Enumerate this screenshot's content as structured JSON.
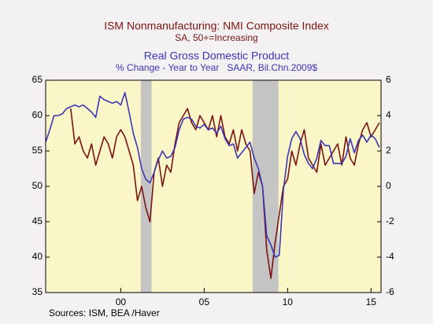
{
  "chart_data": {
    "type": "line",
    "source": "Sources:  ISM, BEA /Haver",
    "xlim": [
      1995.5,
      2015.6
    ],
    "xticks": [
      {
        "value": 2000,
        "label": "00"
      },
      {
        "value": 2005,
        "label": "05"
      },
      {
        "value": 2010,
        "label": "10"
      },
      {
        "value": 2015,
        "label": "15"
      }
    ],
    "ylim": [
      35,
      65
    ],
    "yticks": [
      35,
      40,
      45,
      50,
      55,
      60,
      65
    ],
    "y2lim": [
      -6,
      6
    ],
    "y2ticks": [
      -6,
      -4,
      -2,
      0,
      2,
      4,
      6
    ],
    "shaded_periods": [
      [
        2001.2,
        2001.85
      ],
      [
        2007.9,
        2009.45
      ]
    ],
    "shade_color": "#c4c4c4",
    "background": "#fbf6c8",
    "series": [
      {
        "name": "ISM Nonmanufacturing: NMI Composite Index",
        "subtitle": "SA, 50+=Increasing",
        "color": "#7a1414",
        "axis": "y",
        "x": [
          1997.0,
          1997.25,
          1997.5,
          1997.75,
          1998.0,
          1998.25,
          1998.5,
          1998.75,
          1999.0,
          1999.25,
          1999.5,
          1999.75,
          2000.0,
          2000.25,
          2000.5,
          2000.75,
          2001.0,
          2001.25,
          2001.5,
          2001.75,
          2002.0,
          2002.25,
          2002.5,
          2002.75,
          2003.0,
          2003.25,
          2003.5,
          2003.75,
          2004.0,
          2004.25,
          2004.5,
          2004.75,
          2005.0,
          2005.25,
          2005.5,
          2005.75,
          2006.0,
          2006.25,
          2006.5,
          2006.75,
          2007.0,
          2007.25,
          2007.5,
          2007.75,
          2008.0,
          2008.25,
          2008.5,
          2008.75,
          2009.0,
          2009.25,
          2009.5,
          2009.75,
          2010.0,
          2010.25,
          2010.5,
          2010.75,
          2011.0,
          2011.25,
          2011.5,
          2011.75,
          2012.0,
          2012.25,
          2012.5,
          2012.75,
          2013.0,
          2013.25,
          2013.5,
          2013.75,
          2014.0,
          2014.25,
          2014.5,
          2014.75,
          2015.0,
          2015.25,
          2015.5
        ],
        "values": [
          61,
          56,
          57,
          55,
          54,
          56,
          53,
          55,
          57,
          56,
          54,
          57,
          58,
          57,
          55,
          53,
          48,
          50,
          47,
          45,
          52,
          54,
          50,
          53,
          52,
          56,
          59,
          60,
          61,
          59,
          58,
          60,
          59,
          58,
          60,
          57,
          60,
          57,
          56,
          58,
          55,
          58,
          56,
          55,
          49,
          52,
          50,
          41,
          37,
          42,
          46,
          50,
          51,
          55,
          53,
          56,
          58,
          54,
          53,
          52,
          56,
          53,
          54,
          55,
          56,
          53,
          57,
          54,
          53,
          56,
          58,
          59,
          57,
          58,
          59
        ]
      },
      {
        "name": "Real Gross Domestic Product",
        "subtitle": "% Change - Year to Year   SAAR, Bil.Chn.2009$",
        "color": "#3b36b4",
        "axis": "y2",
        "x": [
          1995.5,
          1995.75,
          1996.0,
          1996.25,
          1996.5,
          1996.75,
          1997.0,
          1997.25,
          1997.5,
          1997.75,
          1998.0,
          1998.25,
          1998.5,
          1998.75,
          1999.0,
          1999.25,
          1999.5,
          1999.75,
          2000.0,
          2000.25,
          2000.5,
          2000.75,
          2001.0,
          2001.25,
          2001.5,
          2001.75,
          2002.0,
          2002.25,
          2002.5,
          2002.75,
          2003.0,
          2003.25,
          2003.5,
          2003.75,
          2004.0,
          2004.25,
          2004.5,
          2004.75,
          2005.0,
          2005.25,
          2005.5,
          2005.75,
          2006.0,
          2006.25,
          2006.5,
          2006.75,
          2007.0,
          2007.25,
          2007.5,
          2007.75,
          2008.0,
          2008.25,
          2008.5,
          2008.75,
          2009.0,
          2009.25,
          2009.5,
          2009.75,
          2010.0,
          2010.25,
          2010.5,
          2010.75,
          2011.0,
          2011.25,
          2011.5,
          2011.75,
          2012.0,
          2012.25,
          2012.5,
          2012.75,
          2013.0,
          2013.25,
          2013.5,
          2013.75,
          2014.0,
          2014.25,
          2014.5,
          2014.75,
          2015.0,
          2015.25,
          2015.5
        ],
        "values": [
          2.5,
          3.2,
          4.0,
          4.0,
          4.1,
          4.4,
          4.5,
          4.6,
          4.5,
          4.6,
          4.4,
          4.2,
          3.9,
          5.1,
          4.9,
          4.8,
          4.7,
          4.8,
          4.6,
          5.3,
          4.2,
          3.0,
          2.2,
          1.0,
          0.4,
          0.2,
          0.8,
          1.5,
          2.0,
          1.6,
          1.7,
          2.2,
          3.2,
          3.8,
          3.9,
          3.8,
          3.4,
          3.3,
          3.5,
          3.2,
          3.3,
          3.0,
          3.4,
          2.7,
          2.3,
          2.4,
          1.6,
          1.9,
          2.2,
          2.5,
          1.6,
          1.0,
          0.0,
          -2.8,
          -3.3,
          -4.0,
          -3.9,
          -0.2,
          1.7,
          2.7,
          3.1,
          2.7,
          1.8,
          1.3,
          1.0,
          1.6,
          2.6,
          2.3,
          2.3,
          1.3,
          1.3,
          1.3,
          1.7,
          2.7,
          1.9,
          2.6,
          2.9,
          2.5,
          2.9,
          2.7,
          2.2
        ]
      }
    ]
  }
}
